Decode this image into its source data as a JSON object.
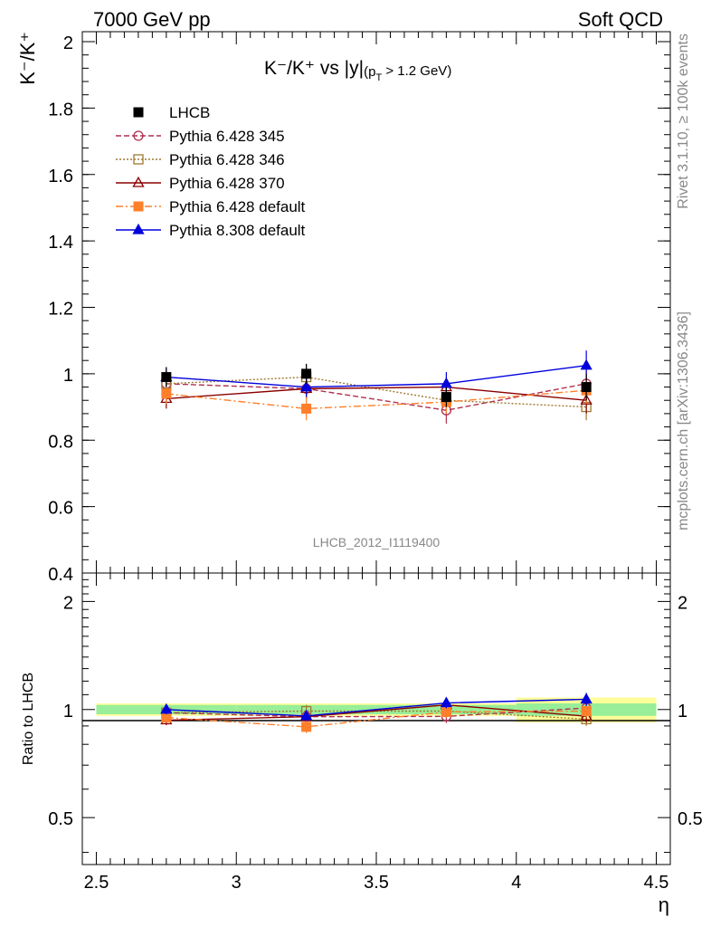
{
  "header": {
    "left": "7000 GeV pp",
    "right": "Soft QCD"
  },
  "side_labels": {
    "rivet": "Rivet 3.1.10, ≥ 100k events",
    "mcplots": "mcplots.cern.ch [arXiv:1306.3436]"
  },
  "chart_data": [
    {
      "type": "scatter",
      "title_main": "K⁻/K⁺ vs |y|",
      "title_sub": "(p",
      "title_sub_T": "T",
      "title_sub_rest": " > 1.2 GeV)",
      "ylabel": "K⁻/K⁺",
      "watermark": "LHCB_2012_I1119400",
      "xlim": [
        2.45,
        4.55
      ],
      "ylim": [
        0.4,
        2.03
      ],
      "yticks": [
        0.4,
        0.6,
        0.8,
        1,
        1.2,
        1.4,
        1.6,
        1.8,
        2
      ],
      "ytick_labels": [
        "0.4",
        "0.6",
        "0.8",
        "1",
        "1.2",
        "1.4",
        "1.6",
        "1.8",
        "2"
      ],
      "x": [
        2.75,
        3.25,
        3.75,
        4.25
      ],
      "series": [
        {
          "name": "LHCB",
          "color": "#000000",
          "marker": "square-filled",
          "line": "none",
          "values": [
            0.99,
            1.0,
            0.93,
            0.96
          ],
          "err": [
            0.03,
            0.03,
            0.03,
            0.04
          ]
        },
        {
          "name": "Pythia 6.428 345",
          "color": "#b03050",
          "marker": "circle-open",
          "line": "dashed",
          "values": [
            0.97,
            0.955,
            0.89,
            0.97
          ],
          "err": [
            0.03,
            0.03,
            0.04,
            0.04
          ]
        },
        {
          "name": "Pythia 6.428 346",
          "color": "#a07830",
          "marker": "square-open",
          "line": "dotted",
          "values": [
            0.97,
            0.99,
            0.92,
            0.9
          ],
          "err": [
            0.03,
            0.04,
            0.04,
            0.04
          ]
        },
        {
          "name": "Pythia 6.428 370",
          "color": "#8b0000",
          "marker": "triangle-open",
          "line": "solid",
          "values": [
            0.925,
            0.955,
            0.96,
            0.92
          ],
          "err": [
            0.03,
            0.03,
            0.03,
            0.04
          ]
        },
        {
          "name": "Pythia 6.428 default",
          "color": "#ff7f2a",
          "marker": "square-filled",
          "line": "dashdot",
          "values": [
            0.94,
            0.895,
            0.915,
            0.95
          ],
          "err": [
            0.03,
            0.035,
            0.035,
            0.04
          ]
        },
        {
          "name": "Pythia 8.308 default",
          "color": "#0000dd",
          "marker": "triangle-filled",
          "line": "solid",
          "values": [
            0.99,
            0.96,
            0.97,
            1.025
          ],
          "err": [
            0.03,
            0.03,
            0.035,
            0.045
          ]
        }
      ],
      "legend_position": "top-left"
    },
    {
      "type": "scatter",
      "ylabel": "Ratio to LHCB",
      "xlabel": "η",
      "ylim_log": [
        0.37,
        2.4
      ],
      "yticks": [
        0.5,
        1,
        2
      ],
      "ytick_labels": [
        "0.5",
        "1",
        "2"
      ],
      "xticks": [
        2.5,
        3,
        3.5,
        4,
        4.5
      ],
      "xtick_labels": [
        "2.5",
        "3",
        "3.5",
        "4",
        "4.5"
      ],
      "bands": [
        {
          "x0": 2.5,
          "x1": 3.0,
          "stat": 0.03,
          "tot": 0.04
        },
        {
          "x0": 3.0,
          "x1": 3.5,
          "stat": 0.03,
          "tot": 0.04
        },
        {
          "x0": 3.5,
          "x1": 4.0,
          "stat": 0.03,
          "tot": 0.04
        },
        {
          "x0": 4.0,
          "x1": 4.5,
          "stat": 0.04,
          "tot": 0.08
        }
      ],
      "ratios": [
        {
          "name": "Pythia 6.428 345",
          "values": [
            0.98,
            0.955,
            0.957,
            1.01
          ]
        },
        {
          "name": "Pythia 6.428 346",
          "values": [
            0.98,
            0.99,
            0.99,
            0.94
          ]
        },
        {
          "name": "Pythia 6.428 370",
          "values": [
            0.934,
            0.955,
            1.03,
            0.958
          ]
        },
        {
          "name": "Pythia 6.428 default",
          "values": [
            0.95,
            0.895,
            0.985,
            0.99
          ]
        },
        {
          "name": "Pythia 8.308 default",
          "values": [
            1.0,
            0.96,
            1.043,
            1.068
          ]
        }
      ]
    }
  ]
}
